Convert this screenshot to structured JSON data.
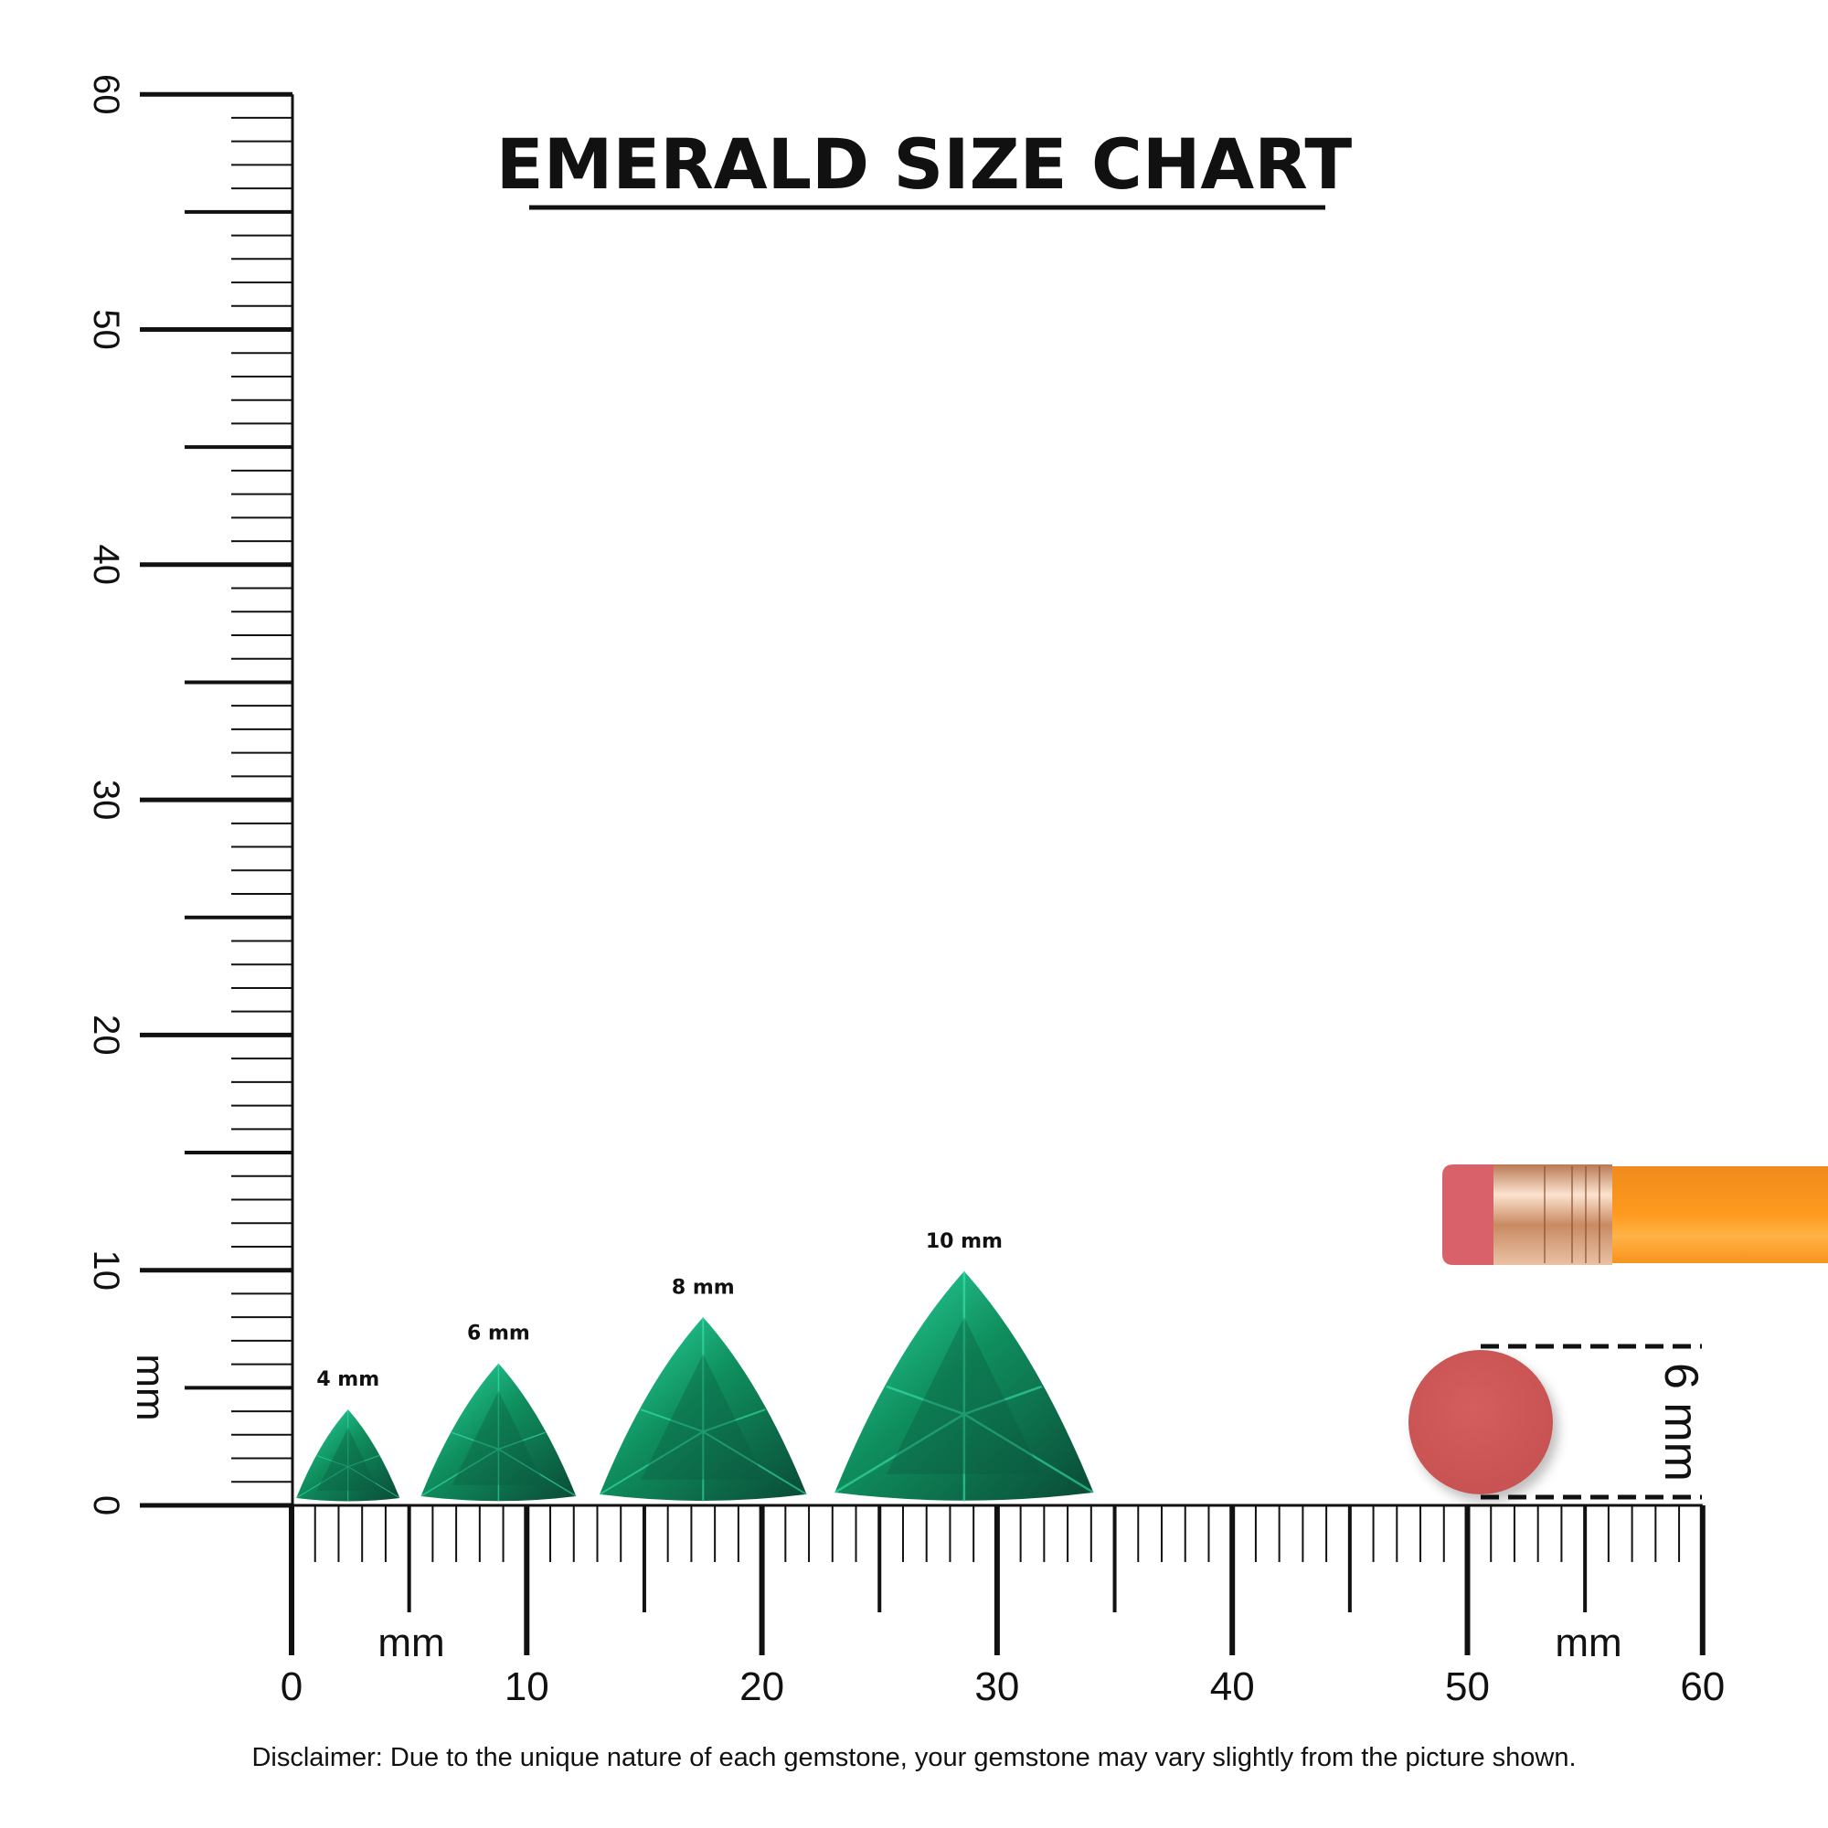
{
  "title": "EMERALD SIZE CHART",
  "unit_label": "mm",
  "ruler": {
    "range_mm": [
      0,
      60
    ],
    "labels": [
      "0",
      "10",
      "20",
      "30",
      "40",
      "50",
      "60"
    ]
  },
  "gems": [
    {
      "label": "4 mm",
      "size_mm": 4,
      "center_mm": 2.4
    },
    {
      "label": "6 mm",
      "size_mm": 6,
      "center_mm": 8.8
    },
    {
      "label": "8 mm",
      "size_mm": 8,
      "center_mm": 17.5
    },
    {
      "label": "10 mm",
      "size_mm": 10,
      "center_mm": 28.6
    }
  ],
  "reference": {
    "label": "6 mm",
    "eraser_color": "#d05a5a"
  },
  "colors": {
    "emerald": "#0f8f5e",
    "emerald_light": "#2ee0a8",
    "emerald_dark": "#0a4a36",
    "pencil": "#f7931e",
    "ferrule": "#d9a27a"
  },
  "disclaimer": "Disclaimer: Due to the unique nature of each gemstone, your gemstone may vary slightly from the picture shown."
}
